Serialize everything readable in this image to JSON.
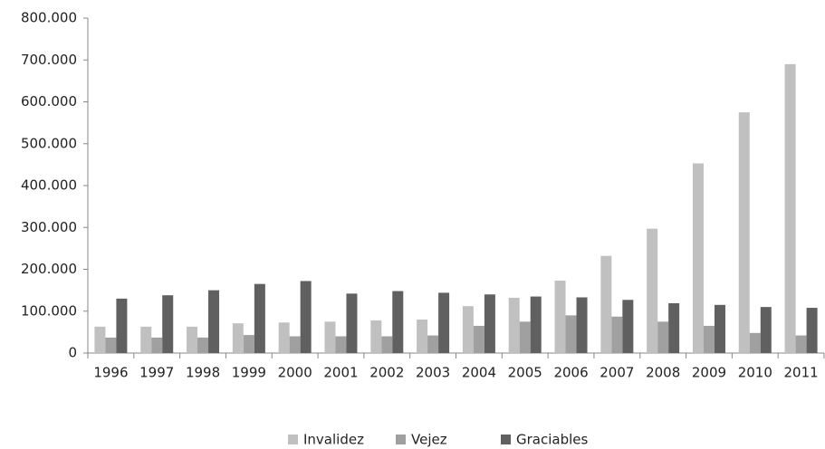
{
  "chart_data": {
    "type": "bar",
    "categories": [
      "1996",
      "1997",
      "1998",
      "1999",
      "2000",
      "2001",
      "2002",
      "2003",
      "2004",
      "2005",
      "2006",
      "2007",
      "2008",
      "2009",
      "2010",
      "2011"
    ],
    "series": [
      {
        "name": "Invalidez",
        "color": "#c0c0c0",
        "values": [
          63000,
          63000,
          63000,
          71000,
          73000,
          75000,
          78000,
          80000,
          112000,
          132000,
          173000,
          232000,
          297000,
          453000,
          575000,
          690000
        ]
      },
      {
        "name": "Vejez",
        "color": "#a0a0a0",
        "values": [
          37000,
          37000,
          37000,
          43000,
          40000,
          40000,
          40000,
          42000,
          65000,
          75000,
          90000,
          87000,
          75000,
          65000,
          48000,
          42000
        ]
      },
      {
        "name": "Graciables",
        "color": "#606060",
        "values": [
          130000,
          138000,
          150000,
          165000,
          172000,
          142000,
          148000,
          144000,
          140000,
          135000,
          133000,
          127000,
          119000,
          115000,
          110000,
          108000
        ]
      }
    ],
    "ylim": [
      0,
      800000
    ],
    "yticks": [
      0,
      {
        "value": 100000,
        "label": "100.000"
      },
      {
        "value": 200000,
        "label": "200.000"
      },
      {
        "value": 300000,
        "label": "300.000"
      },
      {
        "value": 400000,
        "label": "400.000"
      },
      {
        "value": 500000,
        "label": "500.000"
      },
      {
        "value": 600000,
        "label": "600.000"
      },
      {
        "value": 700000,
        "label": "700.000"
      },
      {
        "value": 800000,
        "label": "800.000"
      }
    ],
    "legend": "bottom"
  }
}
